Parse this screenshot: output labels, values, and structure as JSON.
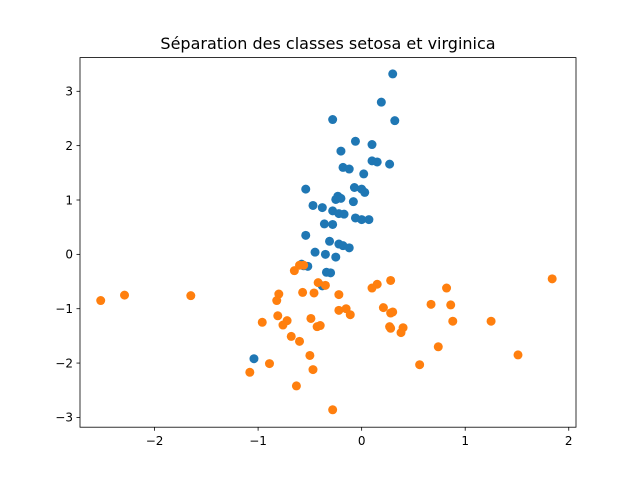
{
  "chart_data": {
    "type": "scatter",
    "title": "Séparation des classes setosa et virginica",
    "xlabel": "",
    "ylabel": "",
    "xlim": [
      -2.72,
      2.07
    ],
    "ylim": [
      -3.18,
      3.62
    ],
    "xticks": [
      -2,
      -1,
      0,
      1,
      2
    ],
    "yticks": [
      -3,
      -2,
      -1,
      0,
      1,
      2,
      3
    ],
    "xtick_labels": [
      "−2",
      "−1",
      "0",
      "1",
      "2"
    ],
    "ytick_labels": [
      "−3",
      "−2",
      "−1",
      "0",
      "1",
      "2",
      "3"
    ],
    "grid": false,
    "legend": false,
    "series": [
      {
        "color": "#1f77b4",
        "points": [
          [
            0.3,
            3.32
          ],
          [
            0.19,
            2.8
          ],
          [
            0.32,
            2.46
          ],
          [
            -0.28,
            2.48
          ],
          [
            -0.06,
            2.08
          ],
          [
            0.1,
            2.02
          ],
          [
            -0.2,
            1.9
          ],
          [
            0.27,
            1.66
          ],
          [
            0.1,
            1.72
          ],
          [
            0.15,
            1.7
          ],
          [
            -0.18,
            1.6
          ],
          [
            -0.12,
            1.57
          ],
          [
            0.02,
            1.48
          ],
          [
            -0.07,
            1.23
          ],
          [
            0.0,
            1.2
          ],
          [
            0.03,
            1.14
          ],
          [
            -0.54,
            1.2
          ],
          [
            -0.23,
            1.07
          ],
          [
            -0.2,
            1.03
          ],
          [
            -0.25,
            1.01
          ],
          [
            -0.08,
            0.97
          ],
          [
            -0.47,
            0.9
          ],
          [
            -0.38,
            0.86
          ],
          [
            -0.28,
            0.8
          ],
          [
            -0.22,
            0.75
          ],
          [
            -0.17,
            0.74
          ],
          [
            -0.06,
            0.67
          ],
          [
            0.0,
            0.64
          ],
          [
            0.07,
            0.64
          ],
          [
            -0.36,
            0.56
          ],
          [
            -0.28,
            0.55
          ],
          [
            -0.54,
            0.35
          ],
          [
            -0.31,
            0.24
          ],
          [
            -0.22,
            0.19
          ],
          [
            -0.18,
            0.16
          ],
          [
            -0.12,
            0.12
          ],
          [
            -0.45,
            0.04
          ],
          [
            -0.35,
            0.0
          ],
          [
            -0.25,
            -0.05
          ],
          [
            -0.58,
            -0.18
          ],
          [
            -0.56,
            -0.21
          ],
          [
            -0.52,
            -0.22
          ],
          [
            -0.34,
            -0.33
          ],
          [
            -0.3,
            -0.34
          ],
          [
            -0.38,
            -0.58
          ],
          [
            -1.04,
            -1.92
          ]
        ]
      },
      {
        "color": "#ff7f0e",
        "points": [
          [
            1.84,
            -0.45
          ],
          [
            -2.52,
            -0.85
          ],
          [
            -2.29,
            -0.75
          ],
          [
            -1.65,
            -0.76
          ],
          [
            -0.65,
            -0.3
          ],
          [
            -0.6,
            -0.2
          ],
          [
            -0.56,
            -0.2
          ],
          [
            0.28,
            -0.48
          ],
          [
            0.15,
            -0.55
          ],
          [
            0.1,
            -0.62
          ],
          [
            0.82,
            -0.62
          ],
          [
            -0.42,
            -0.52
          ],
          [
            -0.35,
            -0.57
          ],
          [
            -0.46,
            -0.71
          ],
          [
            -0.57,
            -0.7
          ],
          [
            -0.22,
            -0.74
          ],
          [
            -0.8,
            -0.73
          ],
          [
            -0.82,
            -0.85
          ],
          [
            0.67,
            -0.92
          ],
          [
            0.86,
            -0.93
          ],
          [
            -0.22,
            -1.03
          ],
          [
            -0.15,
            -1.0
          ],
          [
            -0.11,
            -1.11
          ],
          [
            0.21,
            -0.98
          ],
          [
            0.3,
            -1.06
          ],
          [
            0.28,
            -1.08
          ],
          [
            -0.96,
            -1.25
          ],
          [
            -0.81,
            -1.13
          ],
          [
            -0.72,
            -1.22
          ],
          [
            -0.76,
            -1.3
          ],
          [
            -0.49,
            -1.18
          ],
          [
            -0.43,
            -1.33
          ],
          [
            -0.4,
            -1.31
          ],
          [
            0.27,
            -1.33
          ],
          [
            0.28,
            -1.36
          ],
          [
            0.4,
            -1.35
          ],
          [
            0.38,
            -1.44
          ],
          [
            0.88,
            -1.23
          ],
          [
            1.25,
            -1.23
          ],
          [
            -0.68,
            -1.51
          ],
          [
            -0.6,
            -1.6
          ],
          [
            0.74,
            -1.7
          ],
          [
            -0.5,
            -1.86
          ],
          [
            1.51,
            -1.85
          ],
          [
            -0.89,
            -2.01
          ],
          [
            -0.47,
            -2.12
          ],
          [
            0.56,
            -2.03
          ],
          [
            -1.08,
            -2.17
          ],
          [
            -0.63,
            -2.42
          ],
          [
            -0.28,
            -2.86
          ]
        ]
      }
    ]
  }
}
